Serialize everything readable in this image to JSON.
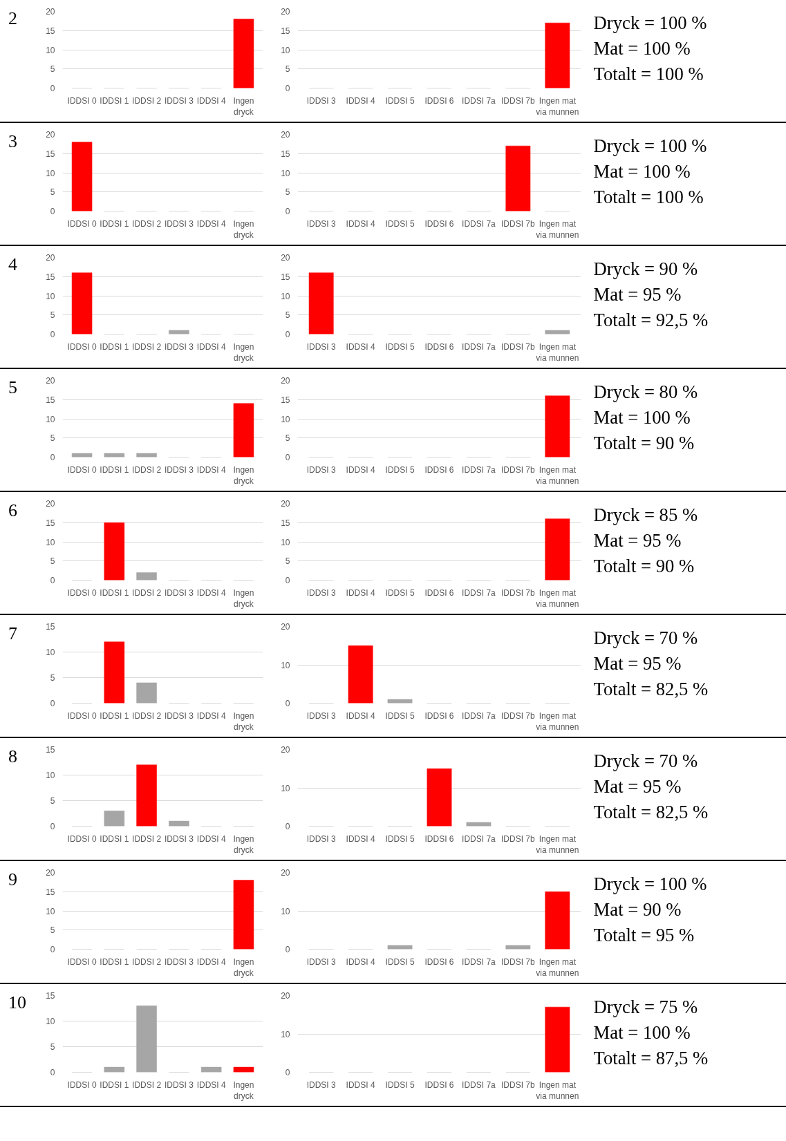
{
  "chart_data": [
    {
      "type": "bar",
      "title": "2",
      "categories": [
        "IDDSI 0",
        "IDDSI 1",
        "IDDSI 2",
        "IDDSI 3",
        "IDDSI 4",
        "Ingen dryck"
      ],
      "values": [
        0,
        0,
        0,
        0,
        0,
        18
      ],
      "colors": [
        "#a6a6a6",
        "#a6a6a6",
        "#a6a6a6",
        "#a6a6a6",
        "#a6a6a6",
        "#ff0000"
      ],
      "ylim": [
        0,
        20
      ],
      "yticks": [
        0,
        5,
        10,
        15,
        20
      ],
      "grid": "y"
    },
    {
      "type": "bar",
      "categories": [
        "IDDSI 3",
        "IDDSI 4",
        "IDDSI 5",
        "IDDSI 6",
        "IDDSI 7a",
        "IDDSI 7b",
        "Ingen mat via munnen"
      ],
      "values": [
        0,
        0,
        0,
        0,
        0,
        0,
        17
      ],
      "colors": [
        "#a6a6a6",
        "#a6a6a6",
        "#a6a6a6",
        "#a6a6a6",
        "#a6a6a6",
        "#a6a6a6",
        "#ff0000"
      ],
      "ylim": [
        0,
        20
      ],
      "yticks": [
        0,
        5,
        10,
        15,
        20
      ],
      "grid": "y"
    },
    {
      "type": "other",
      "annotations": [
        "Dryck = 100 %",
        "Mat = 100 %",
        "Totalt = 100 %"
      ]
    },
    {
      "type": "bar",
      "title": "3",
      "categories": [
        "IDDSI 0",
        "IDDSI 1",
        "IDDSI 2",
        "IDDSI 3",
        "IDDSI 4",
        "Ingen dryck"
      ],
      "values": [
        18,
        0,
        0,
        0,
        0,
        0
      ],
      "colors": [
        "#ff0000",
        "#a6a6a6",
        "#a6a6a6",
        "#a6a6a6",
        "#a6a6a6",
        "#a6a6a6"
      ],
      "ylim": [
        0,
        20
      ],
      "yticks": [
        0,
        5,
        10,
        15,
        20
      ],
      "grid": "y"
    },
    {
      "type": "bar",
      "categories": [
        "IDDSI 3",
        "IDDSI 4",
        "IDDSI 5",
        "IDDSI 6",
        "IDDSI 7a",
        "IDDSI 7b",
        "Ingen mat via munnen"
      ],
      "values": [
        0,
        0,
        0,
        0,
        0,
        17,
        0
      ],
      "colors": [
        "#a6a6a6",
        "#a6a6a6",
        "#a6a6a6",
        "#a6a6a6",
        "#a6a6a6",
        "#ff0000",
        "#a6a6a6"
      ],
      "ylim": [
        0,
        20
      ],
      "yticks": [
        0,
        5,
        10,
        15,
        20
      ],
      "grid": "y"
    },
    {
      "type": "other",
      "annotations": [
        "Dryck = 100 %",
        "Mat = 100 %",
        "Totalt = 100 %"
      ]
    },
    {
      "type": "bar",
      "title": "4",
      "categories": [
        "IDDSI 0",
        "IDDSI 1",
        "IDDSI 2",
        "IDDSI 3",
        "IDDSI 4",
        "Ingen dryck"
      ],
      "values": [
        16,
        0,
        0,
        1,
        0,
        0
      ],
      "colors": [
        "#ff0000",
        "#a6a6a6",
        "#a6a6a6",
        "#a6a6a6",
        "#a6a6a6",
        "#a6a6a6"
      ],
      "ylim": [
        0,
        20
      ],
      "yticks": [
        0,
        5,
        10,
        15,
        20
      ],
      "grid": "y"
    },
    {
      "type": "bar",
      "categories": [
        "IDDSI 3",
        "IDDSI 4",
        "IDDSI 5",
        "IDDSI 6",
        "IDDSI 7a",
        "IDDSI 7b",
        "Ingen mat via munnen"
      ],
      "values": [
        16,
        0,
        0,
        0,
        0,
        0,
        1
      ],
      "colors": [
        "#ff0000",
        "#a6a6a6",
        "#a6a6a6",
        "#a6a6a6",
        "#a6a6a6",
        "#a6a6a6",
        "#a6a6a6"
      ],
      "ylim": [
        0,
        20
      ],
      "yticks": [
        0,
        5,
        10,
        15,
        20
      ],
      "grid": "y"
    },
    {
      "type": "other",
      "annotations": [
        "Dryck = 90 %",
        "Mat = 95 %",
        "Totalt = 92,5 %"
      ]
    },
    {
      "type": "bar",
      "title": "5",
      "categories": [
        "IDDSI 0",
        "IDDSI 1",
        "IDDSI 2",
        "IDDSI 3",
        "IDDSI 4",
        "Ingen dryck"
      ],
      "values": [
        1,
        1,
        1,
        0,
        0,
        14
      ],
      "colors": [
        "#a6a6a6",
        "#a6a6a6",
        "#a6a6a6",
        "#a6a6a6",
        "#a6a6a6",
        "#ff0000"
      ],
      "ylim": [
        0,
        20
      ],
      "yticks": [
        0,
        5,
        10,
        15,
        20
      ],
      "grid": "y"
    },
    {
      "type": "bar",
      "categories": [
        "IDDSI 3",
        "IDDSI 4",
        "IDDSI 5",
        "IDDSI 6",
        "IDDSI 7a",
        "IDDSI 7b",
        "Ingen mat via munnen"
      ],
      "values": [
        0,
        0,
        0,
        0,
        0,
        0,
        16
      ],
      "colors": [
        "#a6a6a6",
        "#a6a6a6",
        "#a6a6a6",
        "#a6a6a6",
        "#a6a6a6",
        "#a6a6a6",
        "#ff0000"
      ],
      "ylim": [
        0,
        20
      ],
      "yticks": [
        0,
        5,
        10,
        15,
        20
      ],
      "grid": "y"
    },
    {
      "type": "other",
      "annotations": [
        "Dryck = 80 %",
        "Mat = 100 %",
        "Totalt = 90 %"
      ]
    },
    {
      "type": "bar",
      "title": "6",
      "categories": [
        "IDDSI 0",
        "IDDSI 1",
        "IDDSI 2",
        "IDDSI 3",
        "IDDSI 4",
        "Ingen dryck"
      ],
      "values": [
        0,
        15,
        2,
        0,
        0,
        0
      ],
      "colors": [
        "#a6a6a6",
        "#ff0000",
        "#a6a6a6",
        "#a6a6a6",
        "#a6a6a6",
        "#a6a6a6"
      ],
      "ylim": [
        0,
        20
      ],
      "yticks": [
        0,
        5,
        10,
        15,
        20
      ],
      "grid": "y"
    },
    {
      "type": "bar",
      "categories": [
        "IDDSI 3",
        "IDDSI 4",
        "IDDSI 5",
        "IDDSI 6",
        "IDDSI 7a",
        "IDDSI 7b",
        "Ingen mat via munnen"
      ],
      "values": [
        0,
        0,
        0,
        0,
        0,
        0,
        16
      ],
      "colors": [
        "#a6a6a6",
        "#a6a6a6",
        "#a6a6a6",
        "#a6a6a6",
        "#a6a6a6",
        "#a6a6a6",
        "#ff0000"
      ],
      "ylim": [
        0,
        20
      ],
      "yticks": [
        0,
        5,
        10,
        15,
        20
      ],
      "grid": "y"
    },
    {
      "type": "other",
      "annotations": [
        "Dryck = 85 %",
        "Mat = 95 %",
        "Totalt = 90 %"
      ]
    },
    {
      "type": "bar",
      "title": "7",
      "categories": [
        "IDDSI 0",
        "IDDSI 1",
        "IDDSI 2",
        "IDDSI 3",
        "IDDSI 4",
        "Ingen dryck"
      ],
      "values": [
        0,
        12,
        4,
        0,
        0,
        0
      ],
      "colors": [
        "#a6a6a6",
        "#ff0000",
        "#a6a6a6",
        "#a6a6a6",
        "#a6a6a6",
        "#a6a6a6"
      ],
      "ylim": [
        0,
        15
      ],
      "yticks": [
        0,
        5,
        10,
        15
      ],
      "grid": "y"
    },
    {
      "type": "bar",
      "categories": [
        "IDDSI 3",
        "IDDSI 4",
        "IDDSI 5",
        "IDDSI 6",
        "IDDSI 7a",
        "IDDSI 7b",
        "Ingen mat via munnen"
      ],
      "values": [
        0,
        15,
        1,
        0,
        0,
        0,
        0
      ],
      "colors": [
        "#a6a6a6",
        "#ff0000",
        "#a6a6a6",
        "#a6a6a6",
        "#a6a6a6",
        "#a6a6a6",
        "#a6a6a6"
      ],
      "ylim": [
        0,
        20
      ],
      "yticks": [
        0,
        10,
        20
      ],
      "grid": "y"
    },
    {
      "type": "other",
      "annotations": [
        "Dryck = 70 %",
        "Mat = 95 %",
        "Totalt = 82,5 %"
      ]
    },
    {
      "type": "bar",
      "title": "8",
      "categories": [
        "IDDSI 0",
        "IDDSI 1",
        "IDDSI 2",
        "IDDSI 3",
        "IDDSI 4",
        "Ingen dryck"
      ],
      "values": [
        0,
        3,
        12,
        1,
        0,
        0
      ],
      "colors": [
        "#a6a6a6",
        "#a6a6a6",
        "#ff0000",
        "#a6a6a6",
        "#a6a6a6",
        "#a6a6a6"
      ],
      "ylim": [
        0,
        15
      ],
      "yticks": [
        0,
        5,
        10,
        15
      ],
      "grid": "y"
    },
    {
      "type": "bar",
      "categories": [
        "IDDSI 3",
        "IDDSI 4",
        "IDDSI 5",
        "IDDSI 6",
        "IDDSI 7a",
        "IDDSI 7b",
        "Ingen mat via munnen"
      ],
      "values": [
        0,
        0,
        0,
        15,
        1,
        0,
        0
      ],
      "colors": [
        "#a6a6a6",
        "#a6a6a6",
        "#a6a6a6",
        "#ff0000",
        "#a6a6a6",
        "#a6a6a6",
        "#a6a6a6"
      ],
      "ylim": [
        0,
        20
      ],
      "yticks": [
        0,
        10,
        20
      ],
      "grid": "y"
    },
    {
      "type": "other",
      "annotations": [
        "Dryck = 70 %",
        "Mat = 95 %",
        "Totalt = 82,5 %"
      ]
    },
    {
      "type": "bar",
      "title": "9",
      "categories": [
        "IDDSI 0",
        "IDDSI 1",
        "IDDSI 2",
        "IDDSI 3",
        "IDDSI 4",
        "Ingen dryck"
      ],
      "values": [
        0,
        0,
        0,
        0,
        0,
        18
      ],
      "colors": [
        "#a6a6a6",
        "#a6a6a6",
        "#a6a6a6",
        "#a6a6a6",
        "#a6a6a6",
        "#ff0000"
      ],
      "ylim": [
        0,
        20
      ],
      "yticks": [
        0,
        5,
        10,
        15,
        20
      ],
      "grid": "y"
    },
    {
      "type": "bar",
      "categories": [
        "IDDSI 3",
        "IDDSI 4",
        "IDDSI 5",
        "IDDSI 6",
        "IDDSI 7a",
        "IDDSI 7b",
        "Ingen mat via munnen"
      ],
      "values": [
        0,
        0,
        1,
        0,
        0,
        1,
        15
      ],
      "colors": [
        "#a6a6a6",
        "#a6a6a6",
        "#a6a6a6",
        "#a6a6a6",
        "#a6a6a6",
        "#a6a6a6",
        "#ff0000"
      ],
      "ylim": [
        0,
        20
      ],
      "yticks": [
        0,
        10,
        20
      ],
      "grid": "y"
    },
    {
      "type": "other",
      "annotations": [
        "Dryck = 100 %",
        "Mat = 90 %",
        "Totalt = 95 %"
      ]
    },
    {
      "type": "bar",
      "title": "10",
      "categories": [
        "IDDSI 0",
        "IDDSI 1",
        "IDDSI 2",
        "IDDSI 3",
        "IDDSI 4",
        "Ingen dryck"
      ],
      "values": [
        0,
        1,
        13,
        0,
        1,
        1
      ],
      "colors": [
        "#a6a6a6",
        "#a6a6a6",
        "#a6a6a6",
        "#a6a6a6",
        "#a6a6a6",
        "#ff0000"
      ],
      "ylim": [
        0,
        15
      ],
      "yticks": [
        0,
        5,
        10,
        15
      ],
      "grid": "y"
    },
    {
      "type": "bar",
      "categories": [
        "IDDSI 3",
        "IDDSI 4",
        "IDDSI 5",
        "IDDSI 6",
        "IDDSI 7a",
        "IDDSI 7b",
        "Ingen mat via munnen"
      ],
      "values": [
        0,
        0,
        0,
        0,
        0,
        0,
        17
      ],
      "colors": [
        "#a6a6a6",
        "#a6a6a6",
        "#a6a6a6",
        "#a6a6a6",
        "#a6a6a6",
        "#a6a6a6",
        "#ff0000"
      ],
      "ylim": [
        0,
        20
      ],
      "yticks": [
        0,
        10,
        20
      ],
      "grid": "y"
    },
    {
      "type": "other",
      "annotations": [
        "Dryck = 75 %",
        "Mat = 100 %",
        "Totalt = 87,5 %"
      ]
    }
  ]
}
